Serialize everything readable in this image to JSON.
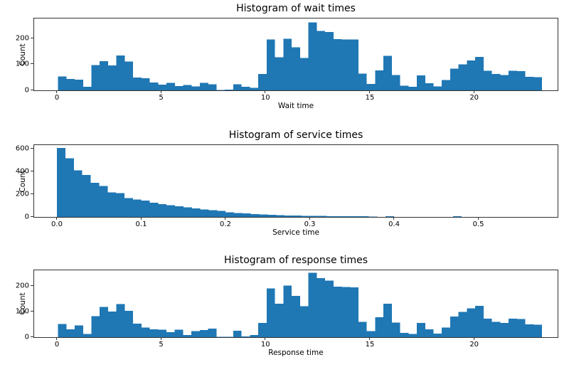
{
  "chart_data": [
    {
      "type": "bar",
      "subtype": "histogram",
      "title": "Histogram of wait times",
      "xlabel": "Wait time",
      "ylabel": "Count",
      "bar_color": "#1f77b4",
      "bin_start": 0.05,
      "bin_width": 0.4,
      "counts": [
        53,
        43,
        41,
        13,
        96,
        112,
        95,
        134,
        110,
        49,
        46,
        30,
        22,
        29,
        16,
        21,
        15,
        28,
        23,
        2,
        3,
        23,
        14,
        9,
        62,
        195,
        126,
        197,
        165,
        124,
        260,
        228,
        223,
        196,
        195,
        195,
        64,
        25,
        76,
        132,
        59,
        18,
        14,
        57,
        27,
        15,
        40,
        83,
        100,
        115,
        128,
        75,
        62,
        58,
        75,
        74,
        52,
        50
      ],
      "xlim": [
        -1.09,
        24.0
      ],
      "ylim": [
        0,
        275
      ],
      "xticks": [
        0,
        5,
        10,
        15,
        20
      ],
      "xtick_labels": [
        "0",
        "5",
        "10",
        "15",
        "20"
      ],
      "yticks": [
        0,
        100,
        200
      ],
      "ytick_labels": [
        "0",
        "100",
        "200"
      ],
      "grid": false,
      "legend": null
    },
    {
      "type": "bar",
      "subtype": "histogram",
      "title": "Histogram of service times",
      "xlabel": "Service time",
      "ylabel": "Count",
      "bar_color": "#1f77b4",
      "bin_start": 0.0,
      "bin_width": 0.01,
      "counts": [
        605,
        515,
        410,
        368,
        300,
        270,
        216,
        210,
        165,
        152,
        143,
        126,
        112,
        104,
        93,
        83,
        74,
        66,
        59,
        52,
        40,
        35,
        30,
        26,
        22,
        18,
        15,
        13,
        11,
        10,
        9,
        8,
        7,
        6,
        6,
        5,
        5,
        4,
        0,
        7,
        0,
        0,
        0,
        0,
        0,
        0,
        0,
        6,
        0,
        0,
        0,
        0,
        0,
        0,
        0,
        0,
        1
      ],
      "xlim": [
        -0.027,
        0.594
      ],
      "ylim": [
        0,
        630
      ],
      "xticks": [
        0.0,
        0.1,
        0.2,
        0.3,
        0.4,
        0.5
      ],
      "xtick_labels": [
        "0.0",
        "0.1",
        "0.2",
        "0.3",
        "0.4",
        "0.5"
      ],
      "yticks": [
        0,
        200,
        400,
        600
      ],
      "ytick_labels": [
        "0",
        "200",
        "400",
        "600"
      ],
      "grid": false,
      "legend": null
    },
    {
      "type": "bar",
      "subtype": "histogram",
      "title": "Histogram of response times",
      "xlabel": "Response time",
      "ylabel": "Count",
      "bar_color": "#1f77b4",
      "bin_start": 0.05,
      "bin_width": 0.4,
      "counts": [
        51,
        31,
        46,
        13,
        81,
        117,
        100,
        128,
        103,
        53,
        38,
        31,
        29,
        19,
        29,
        8,
        24,
        27,
        33,
        2,
        2,
        25,
        3,
        8,
        56,
        190,
        130,
        200,
        160,
        120,
        250,
        230,
        220,
        196,
        195,
        193,
        60,
        23,
        78,
        130,
        57,
        16,
        13,
        55,
        30,
        14,
        38,
        80,
        98,
        112,
        122,
        72,
        60,
        56,
        72,
        71,
        50,
        48
      ],
      "xlim": [
        -1.09,
        24.0
      ],
      "ylim": [
        0,
        260
      ],
      "xticks": [
        0,
        5,
        10,
        15,
        20
      ],
      "xtick_labels": [
        "0",
        "5",
        "10",
        "15",
        "20"
      ],
      "yticks": [
        0,
        100,
        200
      ],
      "ytick_labels": [
        "0",
        "100",
        "200"
      ],
      "grid": false,
      "legend": null
    }
  ]
}
